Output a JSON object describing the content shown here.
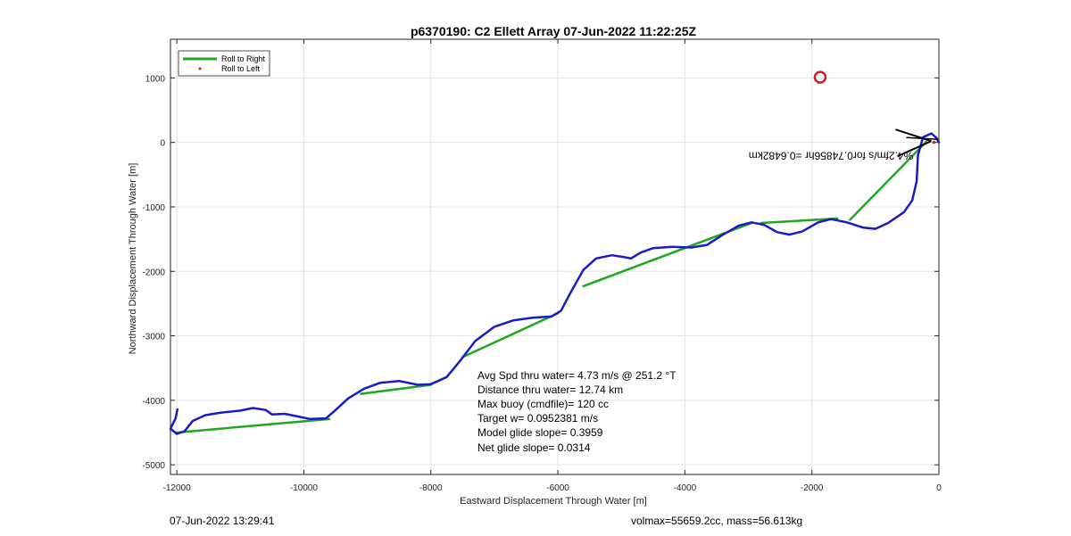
{
  "chart_data": {
    "type": "line",
    "title": "p6370190: C2 Ellett Array 07-Jun-2022 11:22:25Z",
    "xlabel": "Eastward Displacement Through Water [m]",
    "ylabel": "Northward Displacement Through Water [m]",
    "xlim": [
      -12100,
      0
    ],
    "ylim": [
      -5150,
      1600
    ],
    "xticks": [
      -12000,
      -10000,
      -8000,
      -6000,
      -4000,
      -2000,
      0
    ],
    "yticks": [
      -5000,
      -4000,
      -3000,
      -2000,
      -1000,
      0,
      1000
    ],
    "grid": true,
    "legend": {
      "placement": "top-left",
      "entries": [
        "Roll to Right",
        "Roll to Left"
      ]
    },
    "series": [
      {
        "name": "Roll to Right",
        "color": "#1fa81f",
        "segments": [
          [
            [
              -12000,
              -4500
            ],
            [
              -9600,
              -4290
            ]
          ],
          [
            [
              -9100,
              -3900
            ],
            [
              -8000,
              -3760
            ]
          ],
          [
            [
              -7500,
              -3330
            ],
            [
              -6000,
              -2650
            ]
          ],
          [
            [
              -5600,
              -2230
            ],
            [
              -2950,
              -1250
            ]
          ],
          [
            [
              -2800,
              -1250
            ],
            [
              -1600,
              -1180
            ]
          ],
          [
            [
              -1400,
              -1200
            ],
            [
              -200,
              10
            ]
          ]
        ]
      },
      {
        "name": "Roll to Left",
        "color": "#d62020",
        "points": [
          [
            -80,
            0
          ]
        ]
      },
      {
        "name": "track",
        "color": "#1a1ac8",
        "points": [
          [
            -11990,
            -4140
          ],
          [
            -12020,
            -4280
          ],
          [
            -12100,
            -4440
          ],
          [
            -12000,
            -4520
          ],
          [
            -11880,
            -4480
          ],
          [
            -11750,
            -4320
          ],
          [
            -11550,
            -4230
          ],
          [
            -11300,
            -4190
          ],
          [
            -11000,
            -4160
          ],
          [
            -10800,
            -4120
          ],
          [
            -10600,
            -4150
          ],
          [
            -10500,
            -4220
          ],
          [
            -10300,
            -4210
          ],
          [
            -10100,
            -4250
          ],
          [
            -9900,
            -4290
          ],
          [
            -9650,
            -4280
          ],
          [
            -9500,
            -4150
          ],
          [
            -9300,
            -3970
          ],
          [
            -9050,
            -3820
          ],
          [
            -8800,
            -3730
          ],
          [
            -8500,
            -3700
          ],
          [
            -8200,
            -3760
          ],
          [
            -8000,
            -3750
          ],
          [
            -7750,
            -3640
          ],
          [
            -7550,
            -3400
          ],
          [
            -7300,
            -3080
          ],
          [
            -7000,
            -2860
          ],
          [
            -6700,
            -2760
          ],
          [
            -6400,
            -2720
          ],
          [
            -6100,
            -2700
          ],
          [
            -5950,
            -2610
          ],
          [
            -5800,
            -2330
          ],
          [
            -5600,
            -1980
          ],
          [
            -5400,
            -1800
          ],
          [
            -5150,
            -1750
          ],
          [
            -4950,
            -1780
          ],
          [
            -4850,
            -1800
          ],
          [
            -4700,
            -1710
          ],
          [
            -4500,
            -1640
          ],
          [
            -4200,
            -1620
          ],
          [
            -3900,
            -1630
          ],
          [
            -3650,
            -1590
          ],
          [
            -3400,
            -1430
          ],
          [
            -3150,
            -1290
          ],
          [
            -2950,
            -1240
          ],
          [
            -2750,
            -1280
          ],
          [
            -2550,
            -1390
          ],
          [
            -2350,
            -1430
          ],
          [
            -2150,
            -1380
          ],
          [
            -1900,
            -1240
          ],
          [
            -1700,
            -1190
          ],
          [
            -1450,
            -1240
          ],
          [
            -1200,
            -1320
          ],
          [
            -1000,
            -1340
          ],
          [
            -800,
            -1250
          ],
          [
            -550,
            -1080
          ],
          [
            -420,
            -900
          ],
          [
            -350,
            -600
          ],
          [
            -330,
            -200
          ],
          [
            -250,
            80
          ],
          [
            -120,
            140
          ],
          [
            -40,
            70
          ],
          [
            0,
            0
          ]
        ]
      }
    ],
    "marker": {
      "shape": "circle",
      "color": "#cc1f1f",
      "x": -1870,
      "y": 1010
    },
    "annotation_mirrored": "%4.2fm/s for0.74856hr =0.6482km",
    "stats": [
      "Avg Spd thru water=  4.73 m/s @ 251.2 °T",
      "Distance thru water= 12.74 km",
      "Max buoy (cmdfile)= 120 cc",
      "Target w= 0.0952381 m/s",
      "Model glide slope= 0.3959",
      "Net glide slope= 0.0314"
    ]
  },
  "footer": {
    "left": "07-Jun-2022 13:29:41",
    "right": "volmax=55659.2cc, mass=56.613kg"
  }
}
